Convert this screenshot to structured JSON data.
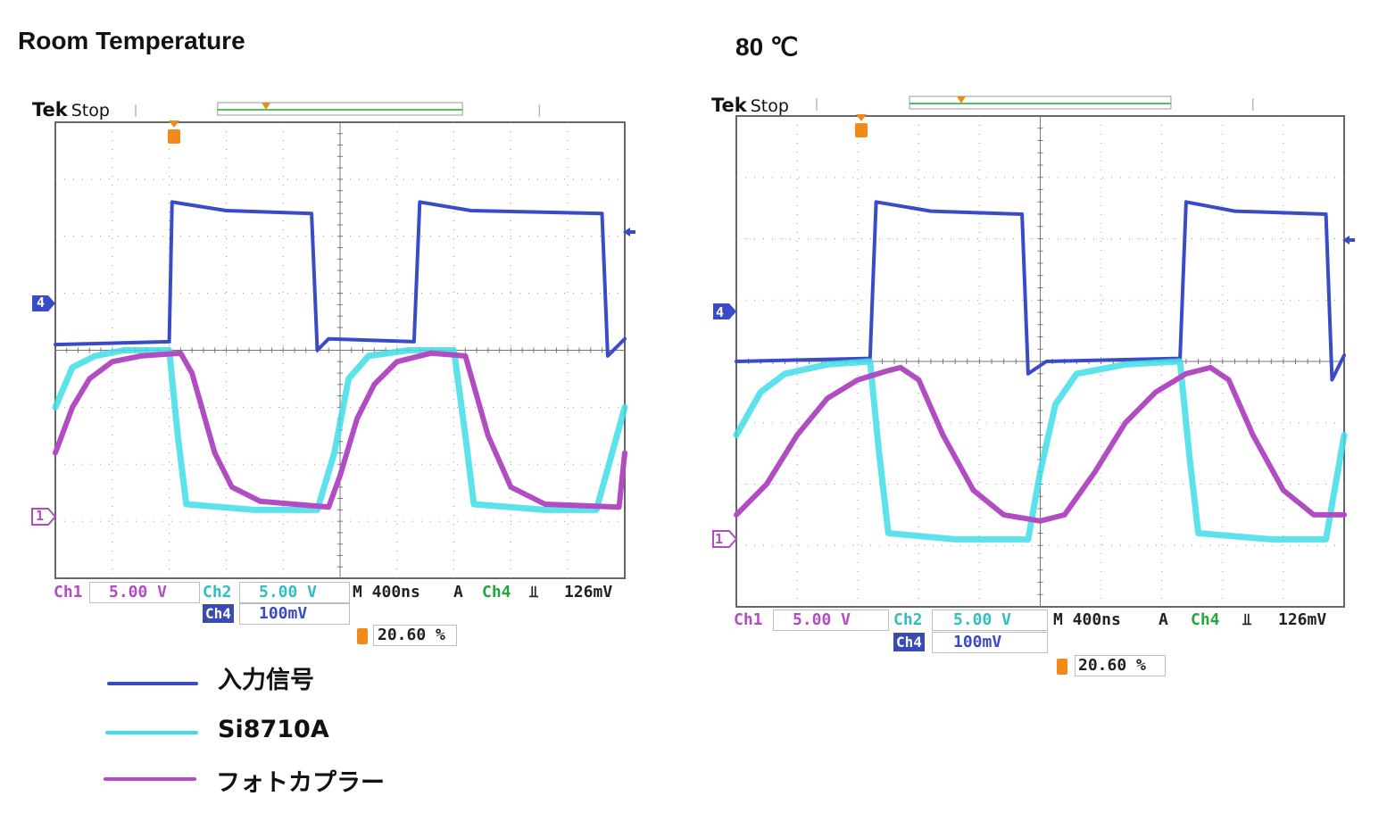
{
  "panels": [
    {
      "title": "Room Temperature",
      "header": {
        "brand": "Tek",
        "status": "Stop"
      },
      "marker_ch4": "4",
      "marker_ch1": "1",
      "readout": {
        "ch1_label": "Ch1",
        "ch1_value": "5.00 V",
        "ch2_label": "Ch2",
        "ch2_value": "5.00 V",
        "ch4_label": "Ch4",
        "ch4_value": "100mV",
        "timebase": "M 400ns",
        "trigger_source_prefix": "A",
        "trigger_source": "Ch4",
        "trigger_slope": "⫫",
        "trigger_level": "126mV",
        "trigger_position": "20.60 %"
      }
    },
    {
      "title": "80 ℃",
      "header": {
        "brand": "Tek",
        "status": "Stop"
      },
      "marker_ch4": "4",
      "marker_ch1": "1",
      "readout": {
        "ch1_label": "Ch1",
        "ch1_value": "5.00 V",
        "ch2_label": "Ch2",
        "ch2_value": "5.00 V",
        "ch4_label": "Ch4",
        "ch4_value": "100mV",
        "timebase": "M 400ns",
        "trigger_source_prefix": "A",
        "trigger_source": "Ch4",
        "trigger_slope": "⫫",
        "trigger_level": "126mV",
        "trigger_position": "20.60 %"
      }
    }
  ],
  "legend": [
    {
      "label": "入力信号",
      "color": "#3a4bc8"
    },
    {
      "label": "Si8710A",
      "color": "#3fdde8"
    },
    {
      "label": "フォトカプラー",
      "color": "#b24cc2"
    }
  ],
  "colors": {
    "ch4": "#3a4bc8",
    "ch2": "#3fdde8",
    "ch1": "#b24cc2",
    "grid": "#9a9a9a",
    "trigger": "#f28a1a",
    "ch2_text": "#2fbfbf",
    "ch4_green": "#22a83a"
  },
  "chart_data": [
    {
      "type": "line",
      "title": "Room Temperature",
      "x_unit": "div (400 ns/div)",
      "xlim": [
        0,
        10
      ],
      "ylim": [
        -4,
        4
      ],
      "series": [
        {
          "name": "入力信号",
          "channel": "Ch4",
          "points": [
            [
              0,
              0.1
            ],
            [
              2,
              0.15
            ],
            [
              2.05,
              2.6
            ],
            [
              3.0,
              2.45
            ],
            [
              4.5,
              2.4
            ],
            [
              4.6,
              0.0
            ],
            [
              4.8,
              0.2
            ],
            [
              6.3,
              0.15
            ],
            [
              6.4,
              2.6
            ],
            [
              7.3,
              2.45
            ],
            [
              9.6,
              2.4
            ],
            [
              9.7,
              -0.1
            ],
            [
              10,
              0.2
            ]
          ]
        },
        {
          "name": "Si8710A",
          "channel": "Ch2",
          "points": [
            [
              0,
              -1.0
            ],
            [
              0.3,
              -0.3
            ],
            [
              0.7,
              -0.1
            ],
            [
              1.2,
              0.0
            ],
            [
              2.0,
              0.0
            ],
            [
              2.15,
              -1.5
            ],
            [
              2.3,
              -2.7
            ],
            [
              3.5,
              -2.8
            ],
            [
              4.6,
              -2.8
            ],
            [
              4.9,
              -1.8
            ],
            [
              5.15,
              -0.5
            ],
            [
              5.5,
              -0.1
            ],
            [
              6.2,
              0.0
            ],
            [
              7.0,
              0.0
            ],
            [
              7.2,
              -1.5
            ],
            [
              7.35,
              -2.7
            ],
            [
              8.6,
              -2.8
            ],
            [
              9.5,
              -2.8
            ],
            [
              10,
              -1.0
            ]
          ]
        },
        {
          "name": "フォトカプラー",
          "channel": "Ch1",
          "points": [
            [
              0,
              -1.8
            ],
            [
              0.3,
              -1.0
            ],
            [
              0.6,
              -0.5
            ],
            [
              1.0,
              -0.2
            ],
            [
              1.5,
              -0.1
            ],
            [
              2.2,
              -0.05
            ],
            [
              2.4,
              -0.4
            ],
            [
              2.8,
              -1.8
            ],
            [
              3.1,
              -2.4
            ],
            [
              3.6,
              -2.65
            ],
            [
              4.8,
              -2.75
            ],
            [
              5.0,
              -2.2
            ],
            [
              5.3,
              -1.2
            ],
            [
              5.6,
              -0.6
            ],
            [
              6.0,
              -0.2
            ],
            [
              6.6,
              -0.05
            ],
            [
              7.2,
              -0.1
            ],
            [
              7.6,
              -1.5
            ],
            [
              8.0,
              -2.4
            ],
            [
              8.6,
              -2.7
            ],
            [
              9.9,
              -2.75
            ],
            [
              10,
              -1.8
            ]
          ]
        }
      ]
    },
    {
      "type": "line",
      "title": "80 ℃",
      "x_unit": "div (400 ns/div)",
      "xlim": [
        0,
        10
      ],
      "ylim": [
        -4,
        4
      ],
      "series": [
        {
          "name": "入力信号",
          "channel": "Ch4",
          "points": [
            [
              0,
              0.0
            ],
            [
              2.2,
              0.05
            ],
            [
              2.3,
              2.6
            ],
            [
              3.2,
              2.45
            ],
            [
              4.7,
              2.4
            ],
            [
              4.8,
              -0.2
            ],
            [
              5.1,
              0.0
            ],
            [
              7.3,
              0.05
            ],
            [
              7.4,
              2.6
            ],
            [
              8.2,
              2.45
            ],
            [
              9.7,
              2.4
            ],
            [
              9.8,
              -0.3
            ],
            [
              10,
              0.1
            ]
          ]
        },
        {
          "name": "Si8710A",
          "channel": "Ch2",
          "points": [
            [
              0,
              -1.2
            ],
            [
              0.4,
              -0.5
            ],
            [
              0.8,
              -0.2
            ],
            [
              1.5,
              -0.05
            ],
            [
              2.2,
              0.0
            ],
            [
              2.35,
              -1.5
            ],
            [
              2.5,
              -2.8
            ],
            [
              3.6,
              -2.9
            ],
            [
              4.8,
              -2.9
            ],
            [
              5.0,
              -1.8
            ],
            [
              5.25,
              -0.7
            ],
            [
              5.6,
              -0.2
            ],
            [
              6.4,
              -0.05
            ],
            [
              7.3,
              0.0
            ],
            [
              7.45,
              -1.5
            ],
            [
              7.6,
              -2.8
            ],
            [
              8.8,
              -2.9
            ],
            [
              9.7,
              -2.9
            ],
            [
              10,
              -1.2
            ]
          ]
        },
        {
          "name": "フォトカプラー",
          "channel": "Ch1",
          "points": [
            [
              0,
              -2.5
            ],
            [
              0.5,
              -2.0
            ],
            [
              1.0,
              -1.2
            ],
            [
              1.5,
              -0.6
            ],
            [
              2.0,
              -0.3
            ],
            [
              2.5,
              -0.15
            ],
            [
              2.7,
              -0.1
            ],
            [
              3.0,
              -0.3
            ],
            [
              3.4,
              -1.2
            ],
            [
              3.9,
              -2.1
            ],
            [
              4.4,
              -2.5
            ],
            [
              5.0,
              -2.6
            ],
            [
              5.4,
              -2.5
            ],
            [
              5.9,
              -1.8
            ],
            [
              6.4,
              -1.0
            ],
            [
              6.9,
              -0.5
            ],
            [
              7.4,
              -0.2
            ],
            [
              7.8,
              -0.1
            ],
            [
              8.1,
              -0.3
            ],
            [
              8.5,
              -1.2
            ],
            [
              9.0,
              -2.1
            ],
            [
              9.5,
              -2.5
            ],
            [
              10,
              -2.5
            ]
          ]
        }
      ]
    }
  ]
}
